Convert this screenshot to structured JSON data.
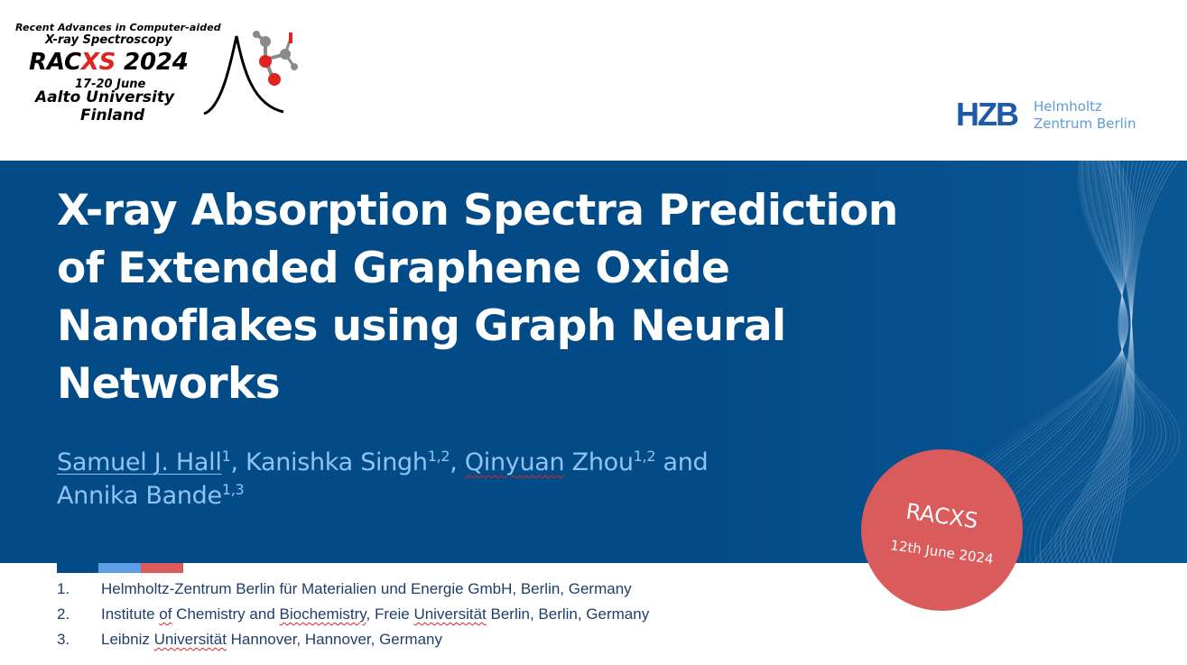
{
  "logo": {
    "line1": "Recent Advances in Computer-aided",
    "line2": "X-ray Spectroscopy",
    "brand_prefix": "RAC",
    "brand_highlight": "XS",
    "brand_year": " 2024",
    "dates": "17-20 June",
    "university": "Aalto University",
    "country": "Finland",
    "highlight_color": "#e0231f"
  },
  "hzb": {
    "mark": "HZB",
    "name_line1": "Helmholtz",
    "name_line2": "Zentrum Berlin",
    "color": "#1f5aa6"
  },
  "title": "X-ray Absorption Spectra Prediction of Extended Graphene Oxide Nanoflakes using Graph Neural Networks",
  "authors": {
    "a1_name": "Samuel J. Hall",
    "a1_sup": "1",
    "sep1": ", Kanishka Singh",
    "a2_sup": "1,2",
    "sep2": ", ",
    "a3_first": "Qinyuan",
    "a3_last": " Zhou",
    "a3_sup": "1,2",
    "and": " and",
    "a4_name": "Annika Bande",
    "a4_sup": "1,3"
  },
  "affiliations": [
    {
      "num": "1.",
      "parts": [
        "Helmholtz-Zentrum Berlin für Materialien und Energie GmbH, Berlin, Germany"
      ]
    },
    {
      "num": "2.",
      "parts": [
        "Institute ",
        "of",
        " Chemistry and ",
        "Biochemistry",
        ", Freie ",
        "Universität",
        " Berlin, Berlin, Germany"
      ]
    },
    {
      "num": "3.",
      "parts": [
        "Leibniz ",
        "Universität",
        " Hannover, Hannover, Germany"
      ]
    }
  ],
  "badge": {
    "title": "RACXS",
    "date": "12th June 2024",
    "color": "#d95b5b"
  },
  "colors": {
    "band": "#024b87",
    "author_text": "#8ec3f4",
    "bar_dark": "#024b87",
    "bar_light": "#5d9ee6",
    "bar_red": "#d95b5b"
  }
}
